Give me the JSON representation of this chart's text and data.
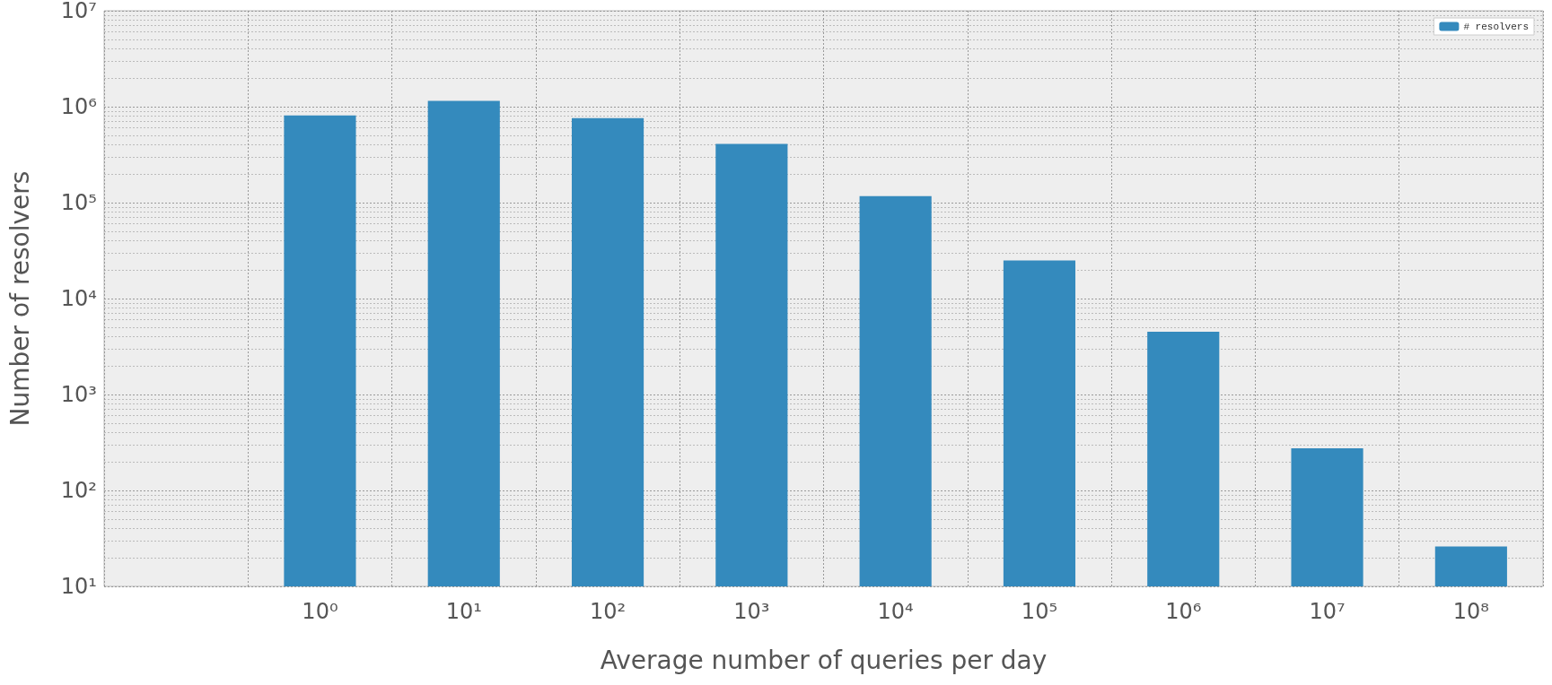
{
  "chart_data": {
    "type": "bar",
    "xlabel": "Average number of queries per day",
    "ylabel": "Number of resolvers",
    "categories": [
      null,
      "10⁰",
      "10¹",
      "10²",
      "10³",
      "10⁴",
      "10⁵",
      "10⁶",
      "10⁷",
      "10⁸"
    ],
    "series": [
      {
        "name": "# resolvers",
        "color": "#348abd",
        "values": [
          null,
          810000,
          1150000,
          760000,
          410000,
          117000,
          25000,
          4500,
          275,
          26
        ]
      }
    ],
    "log": "y",
    "ylim": [
      10,
      10000000
    ],
    "yticks": [
      {
        "value": 10,
        "label": "10¹"
      },
      {
        "value": 100,
        "label": "10²"
      },
      {
        "value": 1000,
        "label": "10³"
      },
      {
        "value": 10000,
        "label": "10⁴"
      },
      {
        "value": 100000,
        "label": "10⁵"
      },
      {
        "value": 1000000,
        "label": "10⁶"
      },
      {
        "value": 10000000,
        "label": "10⁷"
      }
    ],
    "grid": true,
    "legend": "top right"
  }
}
